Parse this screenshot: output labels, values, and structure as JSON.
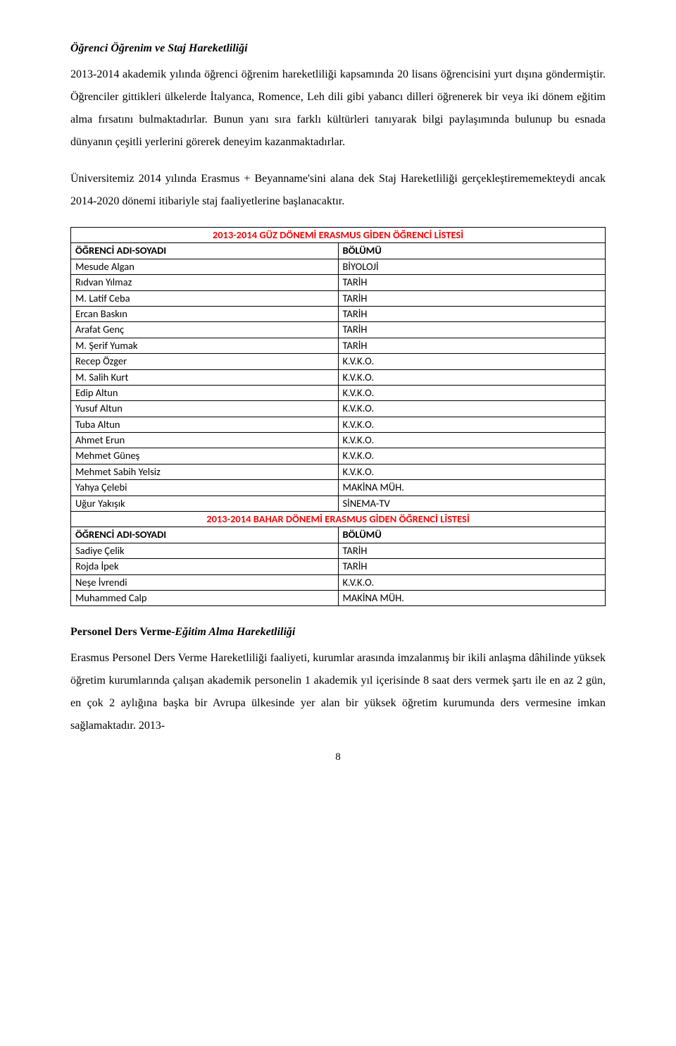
{
  "section1": {
    "heading": "Öğrenci Öğrenim ve Staj Hareketliliği",
    "para1": "2013-2014 akademik yılında öğrenci öğrenim hareketliliği kapsamında 20 lisans öğrencisini yurt dışına göndermiştir. Öğrenciler gittikleri ülkelerde İtalyanca, Romence, Leh dili gibi yabancı dilleri öğrenerek bir veya iki dönem eğitim alma fırsatını bulmaktadırlar. Bunun yanı sıra farklı kültürleri tanıyarak bilgi paylaşımında bulunup bu esnada dünyanın çeşitli yerlerini görerek deneyim kazanmaktadırlar.",
    "para2": "Üniversitemiz 2014 yılında Erasmus + Beyanname'sini alana dek Staj Hareketliliği gerçekleştirememekteydi ancak 2014-2020 dönemi itibariyle staj faaliyetlerine başlanacaktır."
  },
  "table": {
    "banner1": "2013-2014 GÜZ DÖNEMİ ERASMUS GİDEN ÖĞRENCİ LİSTESİ",
    "head_col1": "ÖĞRENCİ ADI-SOYADI",
    "head_col2": "BÖLÜMÜ",
    "rows1": [
      {
        "c1": "Mesude Algan",
        "c2": "BİYOLOJİ"
      },
      {
        "c1": "Rıdvan Yılmaz",
        "c2": "TARİH"
      },
      {
        "c1": "M. Latif Ceba",
        "c2": "TARİH"
      },
      {
        "c1": "Ercan Baskın",
        "c2": "TARİH"
      },
      {
        "c1": "Arafat Genç",
        "c2": "TARİH"
      },
      {
        "c1": "M. Şerif Yumak",
        "c2": "TARİH"
      },
      {
        "c1": "Recep Özger",
        "c2": "K.V.K.O."
      },
      {
        "c1": "M. Salih Kurt",
        "c2": "K.V.K.O."
      },
      {
        "c1": "Edip Altun",
        "c2": "K.V.K.O."
      },
      {
        "c1": "Yusuf Altun",
        "c2": "K.V.K.O."
      },
      {
        "c1": "Tuba Altun",
        "c2": "K.V.K.O."
      },
      {
        "c1": "Ahmet Erun",
        "c2": "K.V.K.O."
      },
      {
        "c1": "Mehmet Güneş",
        "c2": "K.V.K.O."
      },
      {
        "c1": "Mehmet Sabih Yelsiz",
        "c2": "K.V.K.O."
      },
      {
        "c1": "Yahya Çelebi",
        "c2": "MAKİNA MÜH."
      },
      {
        "c1": "Uğur Yakışık",
        "c2": "SİNEMA-TV"
      }
    ],
    "banner2": "2013-2014 BAHAR DÖNEMİ ERASMUS GİDEN ÖĞRENCİ LİSTESİ",
    "rows2": [
      {
        "c1": "Sadiye Çelik",
        "c2": "TARİH"
      },
      {
        "c1": "Rojda İpek",
        "c2": "TARİH"
      },
      {
        "c1": "Neşe İvrendi",
        "c2": "K.V.K.O."
      },
      {
        "c1": "Muhammed Calp",
        "c2": "MAKİNA MÜH."
      }
    ]
  },
  "section2": {
    "heading_bold": "Personel Ders Verme-",
    "heading_italic": "Eğitim Alma Hareketliliği",
    "para": "Erasmus Personel Ders Verme Hareketliliği faaliyeti, kurumlar arasında imzalanmış bir ikili anlaşma dâhilinde yüksek öğretim kurumlarında çalışan akademik personelin 1 akademik yıl içerisinde 8 saat ders vermek şartı ile en az 2 gün, en çok 2 aylığına başka bir Avrupa ülkesinde yer alan bir yüksek öğretim kurumunda ders vermesine imkan sağlamaktadır. 2013-"
  },
  "page_number": "8"
}
